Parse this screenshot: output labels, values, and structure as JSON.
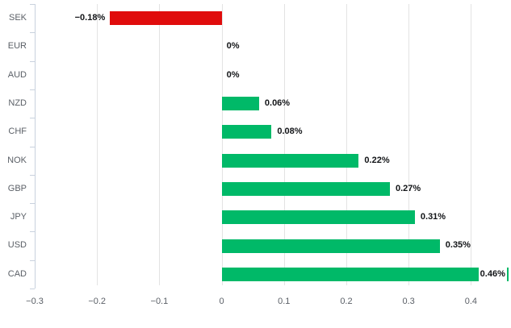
{
  "colors": {
    "positive": "#00b968",
    "negative": "#e00c0c",
    "grid": "#e3e3e3",
    "axis": "#c9d2de",
    "category_text": "#5b6067",
    "tick_text": "#5b6067",
    "value_text": "#121417",
    "background": "#ffffff",
    "value_label_box": "#ffffff"
  },
  "chart_data": {
    "type": "bar",
    "orientation": "horizontal",
    "title": "",
    "xlabel": "",
    "ylabel": "",
    "categories": [
      "SEK",
      "EUR",
      "AUD",
      "NZD",
      "CHF",
      "NOK",
      "GBP",
      "JPY",
      "USD",
      "CAD"
    ],
    "values": [
      -0.18,
      0,
      0,
      0.06,
      0.08,
      0.22,
      0.27,
      0.31,
      0.35,
      0.46
    ],
    "value_labels": [
      "−0.18%",
      "0%",
      "0%",
      "0.06%",
      "0.08%",
      "0.22%",
      "0.27%",
      "0.31%",
      "0.35%",
      "0.46%"
    ],
    "xticks": [
      -0.3,
      -0.2,
      -0.1,
      0,
      0.1,
      0.2,
      0.3,
      0.4
    ],
    "xtick_labels": [
      "−0.3",
      "−0.2",
      "−0.1",
      "0",
      "0.1",
      "0.2",
      "0.3",
      "0.4"
    ],
    "xlim": [
      -0.3,
      0.463
    ],
    "grid": true,
    "legend": false,
    "bar_color_rule": "green if value > 0, red if value < 0, no bar if value = 0"
  }
}
